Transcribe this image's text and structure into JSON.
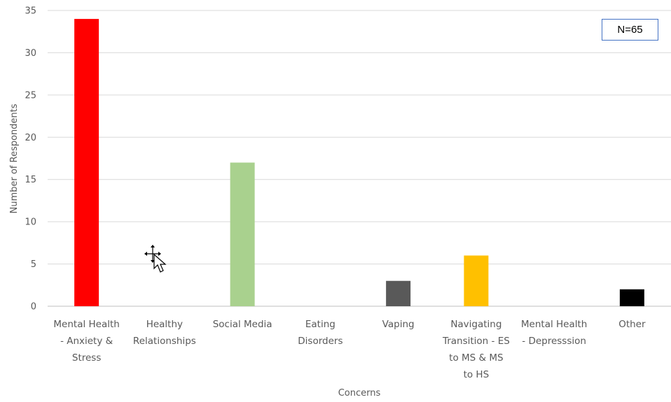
{
  "chart_data": {
    "type": "bar",
    "categories": [
      [
        "Mental Health",
        "- Anxiety &",
        "Stress"
      ],
      [
        "Healthy",
        "Relationships"
      ],
      [
        "Social Media"
      ],
      [
        "Eating",
        "Disorders"
      ],
      [
        "Vaping"
      ],
      [
        "Navigating",
        "Transition - ES",
        "to MS & MS",
        "to HS"
      ],
      [
        "Mental Health",
        "- Depresssion"
      ],
      [
        "Other"
      ]
    ],
    "values": [
      34,
      0,
      17,
      0,
      3,
      6,
      0,
      2
    ],
    "colors": [
      "#ff0000",
      "#a9d18e",
      "#a9d18e",
      "#a9d18e",
      "#595959",
      "#ffc000",
      "#a9d18e",
      "#000000"
    ],
    "xlabel": "Concerns",
    "ylabel": "Number of Respondents",
    "ylim": [
      0,
      35
    ],
    "yticks": [
      0,
      5,
      10,
      15,
      20,
      25,
      30,
      35
    ],
    "grid": true,
    "annotation": "N=65"
  },
  "cursor": {
    "icon": "move-cursor-icon"
  }
}
